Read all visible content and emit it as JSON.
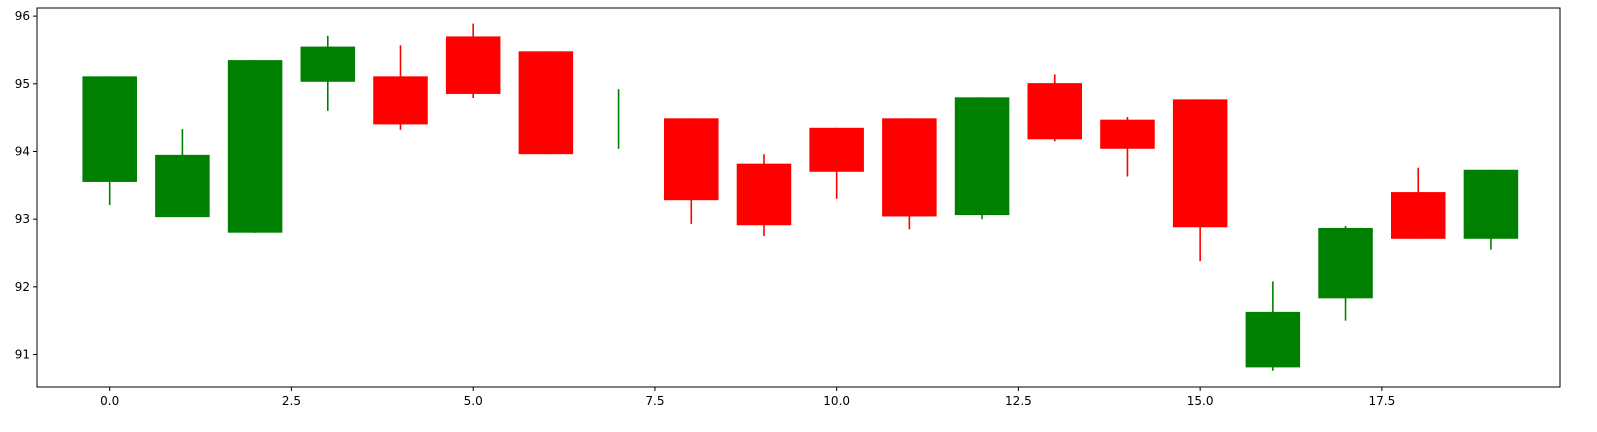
{
  "chart_data": {
    "type": "candlestick",
    "title": "",
    "xlabel": "",
    "ylabel": "",
    "xlim": [
      -1.0,
      19.95
    ],
    "ylim": [
      90.52,
      96.12
    ],
    "x_ticks": [
      0.0,
      2.5,
      5.0,
      7.5,
      10.0,
      12.5,
      15.0,
      17.5
    ],
    "x_tick_labels": [
      "0.0",
      "2.5",
      "5.0",
      "7.5",
      "10.0",
      "12.5",
      "15.0",
      "17.5"
    ],
    "y_ticks": [
      91,
      92,
      93,
      94,
      95,
      96
    ],
    "y_tick_labels": [
      "91",
      "92",
      "93",
      "94",
      "95",
      "96"
    ],
    "grid": false,
    "colors": {
      "up": "#008000",
      "down": "#ff0000",
      "axis": "#000000",
      "background": "#ffffff"
    },
    "candles": [
      {
        "x": 0,
        "open": 93.55,
        "close": 95.11,
        "high": 95.11,
        "low": 93.21
      },
      {
        "x": 1,
        "open": 93.03,
        "close": 93.95,
        "high": 94.33,
        "low": 93.03
      },
      {
        "x": 2,
        "open": 92.8,
        "close": 95.35,
        "high": 95.35,
        "low": 92.8
      },
      {
        "x": 3,
        "open": 95.03,
        "close": 95.55,
        "high": 95.71,
        "low": 94.6
      },
      {
        "x": 4,
        "open": 95.11,
        "close": 94.4,
        "high": 95.57,
        "low": 94.32
      },
      {
        "x": 5,
        "open": 95.7,
        "close": 94.85,
        "high": 95.89,
        "low": 94.79
      },
      {
        "x": 6,
        "open": 95.48,
        "close": 93.96,
        "high": 95.48,
        "low": 93.96
      },
      {
        "x": 7,
        "open": 94.04,
        "close": 94.04,
        "high": 94.92,
        "low": 94.04
      },
      {
        "x": 8,
        "open": 94.49,
        "close": 93.28,
        "high": 94.49,
        "low": 92.93
      },
      {
        "x": 9,
        "open": 93.82,
        "close": 92.91,
        "high": 93.96,
        "low": 92.75
      },
      {
        "x": 10,
        "open": 94.35,
        "close": 93.7,
        "high": 94.35,
        "low": 93.3
      },
      {
        "x": 11,
        "open": 94.49,
        "close": 93.04,
        "high": 94.49,
        "low": 92.85
      },
      {
        "x": 12,
        "open": 93.06,
        "close": 94.8,
        "high": 94.8,
        "low": 93.0
      },
      {
        "x": 13,
        "open": 95.01,
        "close": 94.18,
        "high": 95.14,
        "low": 94.15
      },
      {
        "x": 14,
        "open": 94.47,
        "close": 94.04,
        "high": 94.51,
        "low": 93.63
      },
      {
        "x": 15,
        "open": 94.77,
        "close": 92.88,
        "high": 94.77,
        "low": 92.38
      },
      {
        "x": 16,
        "open": 90.81,
        "close": 91.63,
        "high": 92.08,
        "low": 90.76
      },
      {
        "x": 17,
        "open": 91.83,
        "close": 92.87,
        "high": 92.9,
        "low": 91.5
      },
      {
        "x": 18,
        "open": 93.4,
        "close": 92.71,
        "high": 93.76,
        "low": 92.71
      },
      {
        "x": 19,
        "open": 92.71,
        "close": 93.73,
        "high": 93.73,
        "low": 92.55
      }
    ]
  }
}
